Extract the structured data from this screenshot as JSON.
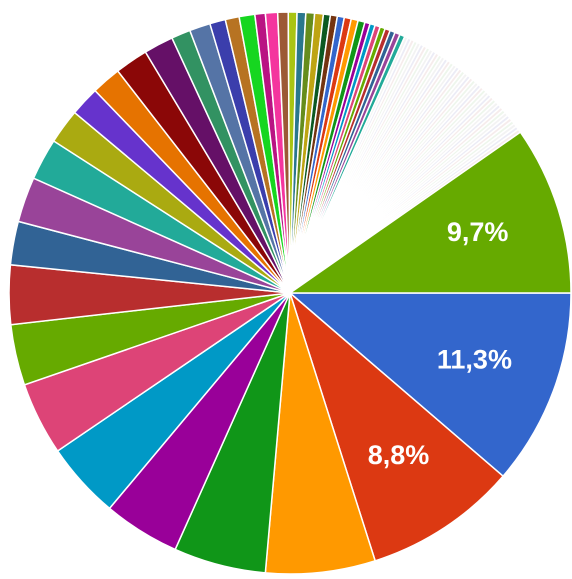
{
  "chart_data": {
    "type": "pie",
    "values": [
      11.3,
      8.8,
      6.3,
      5.3,
      4.4,
      4.4,
      4.2,
      3.5,
      3.4,
      2.5,
      2.6,
      2.4,
      2,
      1.7,
      1.7,
      1.9,
      1.7,
      1.1,
      1.2,
      0.9,
      0.8,
      0.9,
      0.6,
      0.7,
      0.6,
      0.5,
      0.5,
      0.5,
      0.5,
      0.4,
      0.4,
      0.4,
      0.4,
      0.4,
      0.4,
      0.3,
      0.3,
      0.3,
      0.3,
      0.3,
      0.3,
      0.3,
      0.3,
      0.2,
      0.2,
      0.2,
      0.2,
      0.2,
      0.2,
      0.2,
      0.2,
      0.2,
      0.2,
      0.2,
      0.2,
      0.2,
      0.2,
      0.2,
      0.2,
      0.2,
      0.2,
      0.2,
      0.2,
      0.2,
      0.2,
      0.2,
      0.2,
      0.2,
      0.2,
      0.2,
      0.2,
      0.2,
      0.2,
      0.2,
      0.2,
      0.2,
      0.2,
      0.2,
      0.2,
      0.2,
      0.2,
      0.2,
      0.2,
      0.2,
      0.2,
      0.2,
      9.7
    ],
    "value_labels": [
      "11,3%",
      "8,8%",
      null,
      null,
      null,
      null,
      null,
      null,
      null,
      null,
      null,
      null,
      null,
      null,
      null,
      null,
      null,
      null,
      null,
      null,
      null,
      null,
      null,
      null,
      null,
      null,
      null,
      null,
      null,
      null,
      null,
      null,
      null,
      null,
      null,
      null,
      null,
      null,
      null,
      null,
      null,
      null,
      null,
      null,
      null,
      null,
      null,
      null,
      null,
      null,
      null,
      null,
      null,
      null,
      null,
      null,
      null,
      null,
      null,
      null,
      null,
      null,
      null,
      null,
      null,
      null,
      null,
      null,
      null,
      null,
      null,
      null,
      null,
      null,
      null,
      null,
      null,
      null,
      null,
      null,
      null,
      null,
      null,
      null,
      null,
      null,
      "9,7%"
    ],
    "colors": [
      "#3366cc",
      "#dc3912",
      "#ff9900",
      "#109618",
      "#990099",
      "#0099c6",
      "#dd4477",
      "#66aa00",
      "#b82e2e",
      "#316395",
      "#994499",
      "#22aa99",
      "#aaaa11",
      "#6633cc",
      "#e67300",
      "#8b0707",
      "#651067",
      "#329262",
      "#5574a6",
      "#3b3eac",
      "#b77322",
      "#16d620",
      "#b91383",
      "#f4359e",
      "#9c5935",
      "#a9c413",
      "#2a778d",
      "#668d1c",
      "#bea413",
      "#0c5922",
      "#743411",
      "#3366cc",
      "#dc3912",
      "#ff9900",
      "#109618",
      "#990099",
      "#0099c6",
      "#dd4477",
      "#66aa00",
      "#b82e2e",
      "#316395",
      "#994499",
      "#22aa99",
      "#f3f3f3",
      "#ececf6",
      "#f6ecec",
      "#eef6ec",
      "#f3f3f3",
      "#ececf6",
      "#f6ecec",
      "#eef6ec",
      "#f3f3f3",
      "#ececf6",
      "#f6ecec",
      "#eef6ec",
      "#f3f3f3",
      "#ececf6",
      "#f6ecec",
      "#eef6ec",
      "#f3f3f3",
      "#ececf6",
      "#f6ecec",
      "#eef6ec",
      "#f3f3f3",
      "#ececf6",
      "#f6ecec",
      "#eef6ec",
      "#f3f3f3",
      "#ececf6",
      "#f6ecec",
      "#eef6ec",
      "#f3f3f3",
      "#ececf6",
      "#f6ecec",
      "#eef6ec",
      "#f3f3f3",
      "#ececf6",
      "#f6ecec",
      "#eef6ec",
      "#f3f3f3",
      "#ececf6",
      "#f6ecec",
      "#eef6ec",
      "#f3f3f3",
      "#ececf6",
      "#f6ecec",
      "#66aa00"
    ]
  }
}
